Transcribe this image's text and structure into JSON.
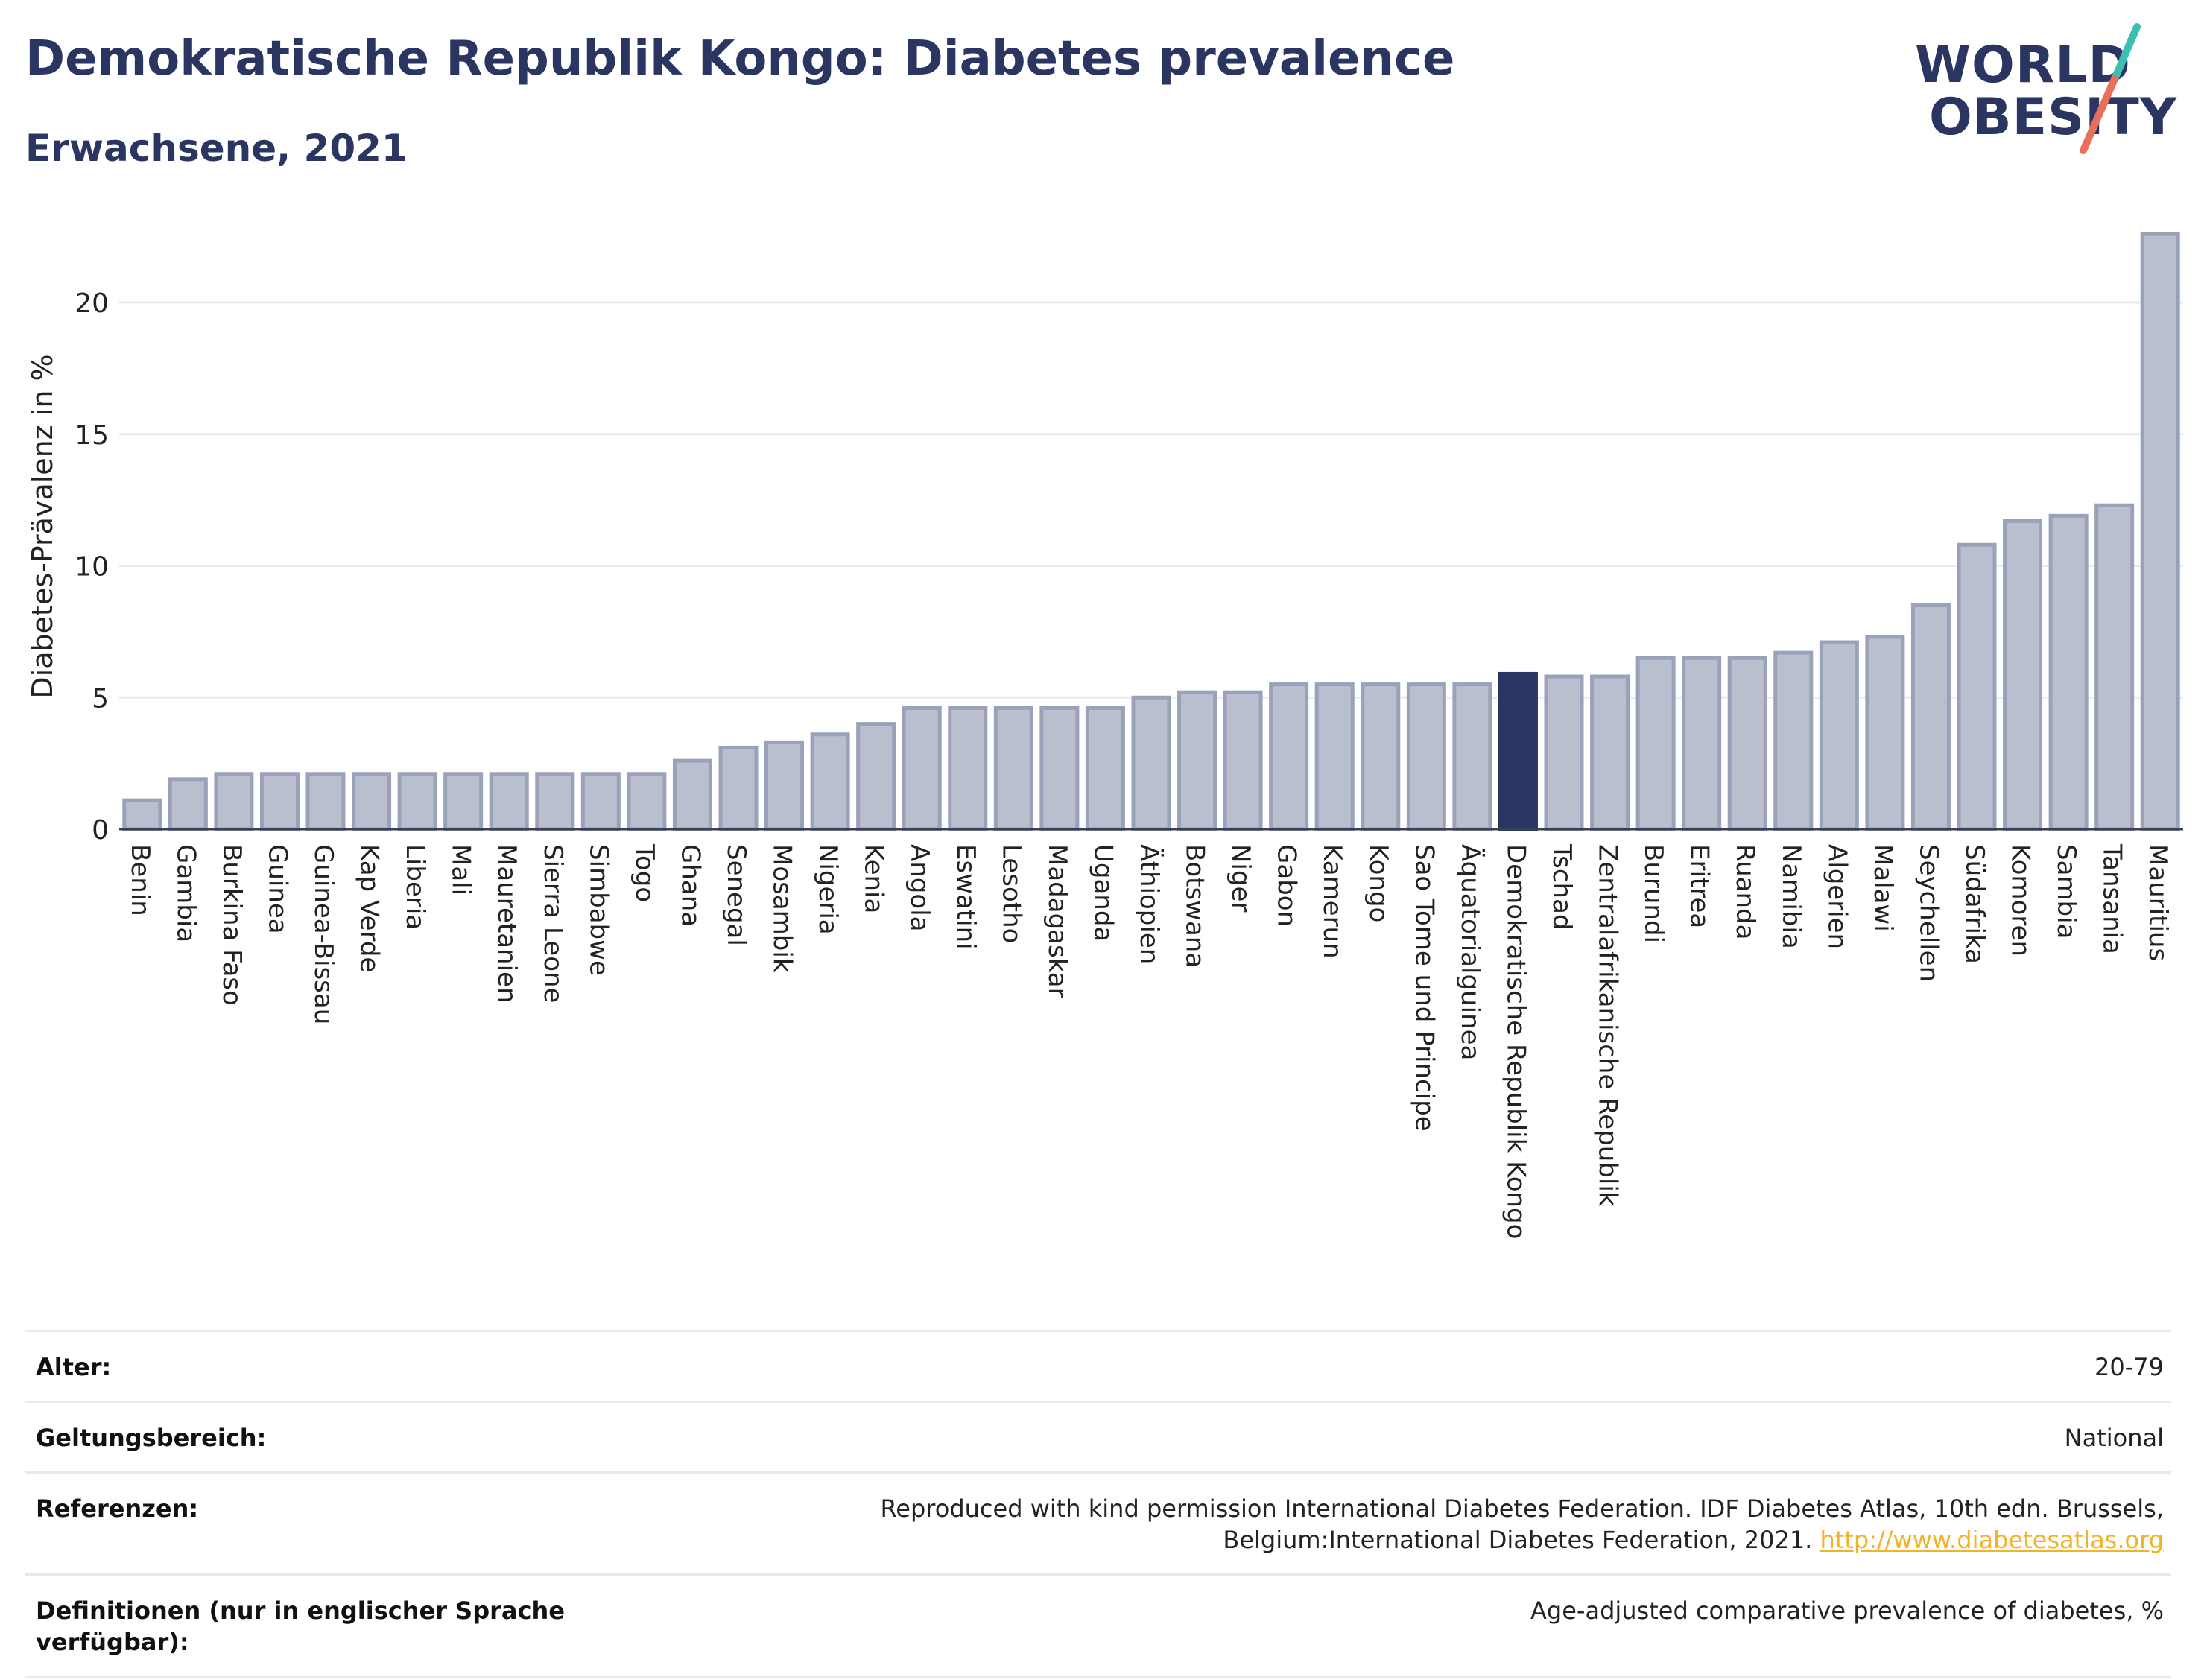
{
  "header": {
    "title": "Demokratische Republik Kongo: Diabetes prevalence",
    "subtitle": "Erwachsene, 2021"
  },
  "logo": {
    "line1": "WORLD",
    "line2": "OBESITY",
    "colors": {
      "text": "#2b3561",
      "slash_top": "#3bbfb0",
      "slash_bottom": "#e8705a"
    }
  },
  "chart_data": {
    "type": "bar",
    "title": "Demokratische Republik Kongo: Diabetes prevalence",
    "subtitle": "Erwachsene, 2021",
    "xlabel": "",
    "ylabel": "Diabetes-Prävalenz in %",
    "ylim": [
      0,
      23
    ],
    "yticks": [
      0,
      5,
      10,
      15,
      20
    ],
    "grid": true,
    "highlight": "Demokratische Republik Kongo",
    "colors": {
      "bar": "#b9bfcf",
      "bar_edge": "#9aa2ba",
      "highlight": "#2b3561"
    },
    "categories": [
      "Benin",
      "Gambia",
      "Burkina Faso",
      "Guinea",
      "Guinea-Bissau",
      "Kap Verde",
      "Liberia",
      "Mali",
      "Mauretanien",
      "Sierra Leone",
      "Simbabwe",
      "Togo",
      "Ghana",
      "Senegal",
      "Mosambik",
      "Nigeria",
      "Kenia",
      "Angola",
      "Eswatini",
      "Lesotho",
      "Madagaskar",
      "Uganda",
      "Äthiopien",
      "Botswana",
      "Niger",
      "Gabon",
      "Kamerun",
      "Kongo",
      "Sao Tome und Principe",
      "Äquatorialguinea",
      "Demokratische Republik Kongo",
      "Tschad",
      "Zentralafrikanische Republik",
      "Burundi",
      "Eritrea",
      "Ruanda",
      "Namibia",
      "Algerien",
      "Malawi",
      "Seychellen",
      "Südafrika",
      "Komoren",
      "Sambia",
      "Tansania",
      "Mauritius"
    ],
    "values": [
      1.1,
      1.9,
      2.1,
      2.1,
      2.1,
      2.1,
      2.1,
      2.1,
      2.1,
      2.1,
      2.1,
      2.1,
      2.6,
      3.1,
      3.3,
      3.6,
      4.0,
      4.6,
      4.6,
      4.6,
      4.6,
      4.6,
      5.0,
      5.2,
      5.2,
      5.5,
      5.5,
      5.5,
      5.5,
      5.5,
      5.9,
      5.8,
      5.8,
      6.5,
      6.5,
      6.5,
      6.7,
      7.1,
      7.3,
      8.5,
      10.8,
      11.7,
      11.9,
      12.3,
      22.6
    ]
  },
  "meta": {
    "rows": [
      {
        "label": "Alter:",
        "value": "20-79"
      },
      {
        "label": "Geltungsbereich:",
        "value": "National"
      },
      {
        "label": "Referenzen:",
        "value": "Reproduced with kind permission International Diabetes Federation.  IDF Diabetes Atlas, 10th edn. Brussels, Belgium:International Diabetes Federation, 2021.",
        "link": "http://www.diabetesatlas.org"
      },
      {
        "label": "Definitionen (nur in englischer Sprache verfügbar):",
        "value": "Age-adjusted comparative prevalence of diabetes, %"
      }
    ]
  }
}
